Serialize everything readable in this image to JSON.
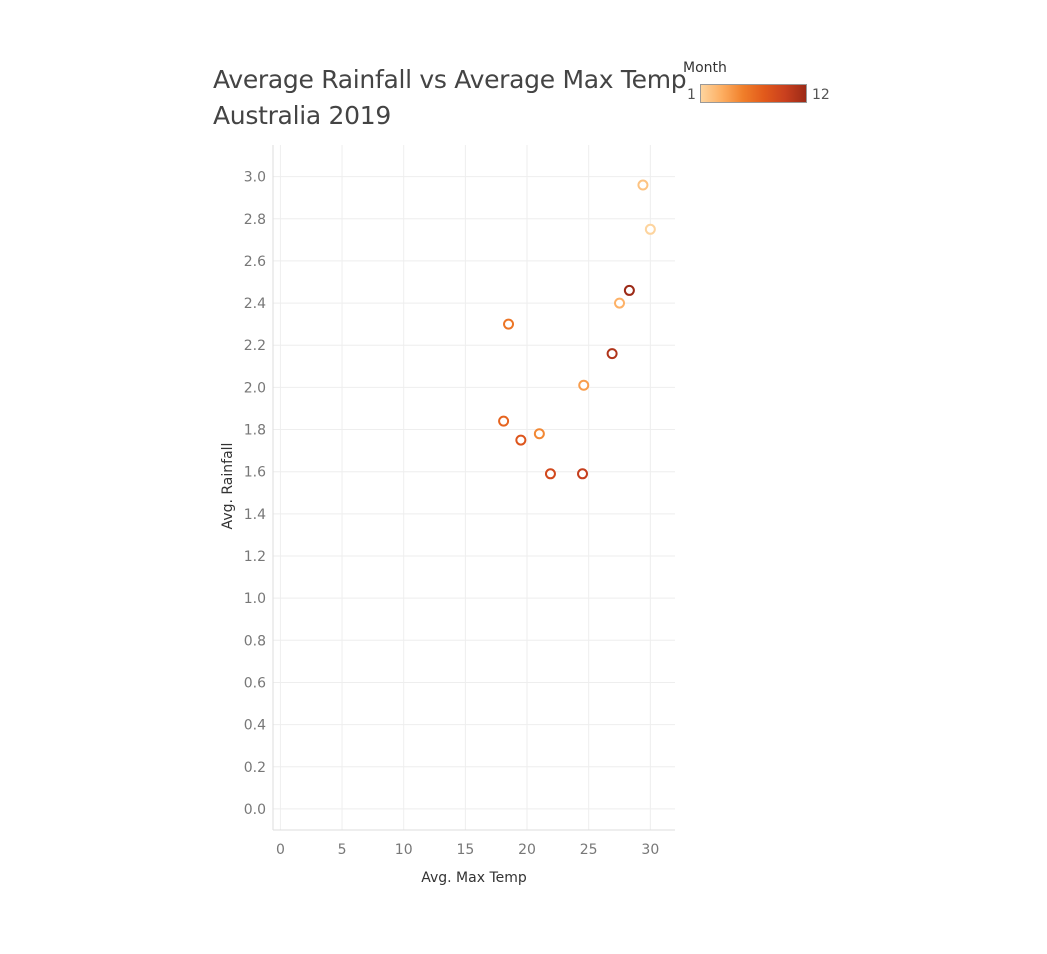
{
  "chart_data": {
    "type": "scatter",
    "title_lines": [
      "Average Rainfall vs Average Max Temp",
      "Australia 2019"
    ],
    "xlabel": "Avg. Max Temp",
    "ylabel": "Avg. Rainfall",
    "xlim": [
      -0.6,
      32
    ],
    "ylim": [
      -0.1,
      3.15
    ],
    "x_ticks": [
      "0",
      "5",
      "10",
      "15",
      "20",
      "25",
      "30"
    ],
    "y_ticks": [
      "0.0",
      "0.2",
      "0.4",
      "0.6",
      "0.8",
      "1.0",
      "1.2",
      "1.4",
      "1.6",
      "1.8",
      "2.0",
      "2.2",
      "2.4",
      "2.6",
      "2.8",
      "3.0"
    ],
    "grid": true,
    "legend": {
      "title": "Month",
      "min_label": "1",
      "max_label": "12",
      "placement": "top-right",
      "colors": [
        "#fdd49e",
        "#fdae61",
        "#f07f2a",
        "#e25a1b",
        "#c9401e",
        "#9c2a17"
      ]
    },
    "color_field": "Month",
    "points": [
      {
        "month": 1,
        "x": 30.0,
        "y": 2.75
      },
      {
        "month": 2,
        "x": 29.4,
        "y": 2.96
      },
      {
        "month": 3,
        "x": 27.5,
        "y": 2.4
      },
      {
        "month": 4,
        "x": 24.6,
        "y": 2.01
      },
      {
        "month": 5,
        "x": 21.0,
        "y": 1.78
      },
      {
        "month": 6,
        "x": 18.5,
        "y": 2.3
      },
      {
        "month": 7,
        "x": 18.1,
        "y": 1.84
      },
      {
        "month": 8,
        "x": 19.5,
        "y": 1.75
      },
      {
        "month": 9,
        "x": 21.9,
        "y": 1.59
      },
      {
        "month": 10,
        "x": 24.5,
        "y": 1.59
      },
      {
        "month": 11,
        "x": 26.9,
        "y": 2.16
      },
      {
        "month": 12,
        "x": 28.3,
        "y": 2.46
      }
    ]
  }
}
